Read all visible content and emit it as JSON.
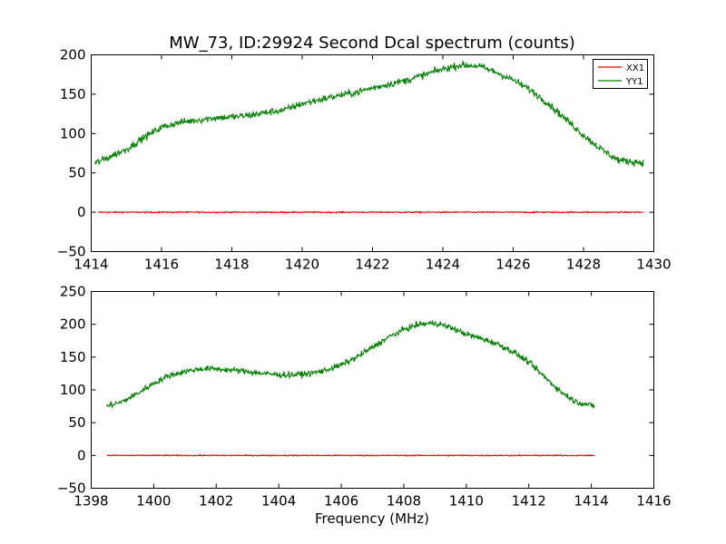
{
  "figure": {
    "title": "MW_73, ID:29924 Second Dcal spectrum (counts)",
    "xlabel": "Frequency (MHz)"
  },
  "colors": {
    "XX1": "#ff0000",
    "YY1": "#008000"
  },
  "chart_data": [
    {
      "type": "line",
      "legend": [
        "XX1",
        "YY1"
      ],
      "legend_placement": "top-right",
      "grid": false,
      "xlim": [
        1414,
        1430
      ],
      "ylim": [
        -50,
        200
      ],
      "xticks": [
        "1414",
        "1416",
        "1418",
        "1420",
        "1422",
        "1424",
        "1426",
        "1428",
        "1430"
      ],
      "yticks": [
        "−50",
        "0",
        "50",
        "100",
        "150",
        "200"
      ],
      "series": [
        {
          "name": "XX1",
          "x": [
            1414.2,
            1429.7
          ],
          "y": [
            0,
            0
          ]
        },
        {
          "name": "YY1",
          "x": [
            1414.1,
            1414.5,
            1415.0,
            1415.5,
            1416.0,
            1416.5,
            1417.0,
            1417.5,
            1418.0,
            1418.5,
            1419.0,
            1419.5,
            1420.0,
            1420.5,
            1421.0,
            1421.5,
            1422.0,
            1422.5,
            1423.0,
            1423.5,
            1424.0,
            1424.5,
            1425.0,
            1425.5,
            1426.0,
            1426.5,
            1427.0,
            1427.5,
            1428.0,
            1428.5,
            1429.0,
            1429.7
          ],
          "y": [
            62,
            70,
            80,
            95,
            108,
            114,
            117,
            120,
            121,
            123,
            127,
            130,
            138,
            143,
            148,
            152,
            158,
            163,
            168,
            175,
            182,
            187,
            186,
            178,
            168,
            155,
            138,
            118,
            98,
            80,
            66,
            63
          ]
        }
      ]
    },
    {
      "type": "line",
      "grid": false,
      "xlim": [
        1398,
        1416
      ],
      "ylim": [
        -50,
        250
      ],
      "xticks": [
        "1398",
        "1400",
        "1402",
        "1404",
        "1406",
        "1408",
        "1410",
        "1412",
        "1414",
        "1416"
      ],
      "yticks": [
        "−50",
        "0",
        "50",
        "100",
        "150",
        "200",
        "250"
      ],
      "series": [
        {
          "name": "XX1",
          "x": [
            1398.5,
            1414.1
          ],
          "y": [
            0,
            0
          ]
        },
        {
          "name": "YY1",
          "x": [
            1398.5,
            1399.0,
            1399.5,
            1400.0,
            1400.5,
            1401.0,
            1401.5,
            1402.0,
            1402.5,
            1403.0,
            1403.5,
            1404.0,
            1404.5,
            1405.0,
            1405.5,
            1406.0,
            1406.5,
            1407.0,
            1407.5,
            1408.0,
            1408.5,
            1409.0,
            1409.5,
            1410.0,
            1410.5,
            1411.0,
            1411.5,
            1412.0,
            1412.5,
            1413.0,
            1413.5,
            1414.1
          ],
          "y": [
            75,
            82,
            95,
            110,
            122,
            128,
            132,
            132,
            130,
            128,
            125,
            123,
            123,
            125,
            130,
            138,
            150,
            165,
            180,
            192,
            200,
            202,
            195,
            185,
            178,
            170,
            158,
            142,
            120,
            98,
            82,
            75
          ]
        }
      ]
    }
  ]
}
